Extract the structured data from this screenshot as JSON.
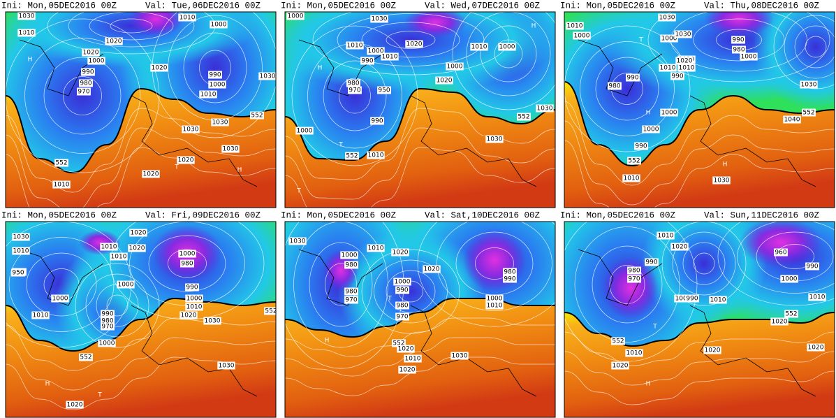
{
  "panels": [
    {
      "ini": "Ini: Mon,05DEC2016 00Z",
      "val": "Val: Tue,06DEC2016 00Z",
      "labels": [
        "1030",
        "1010",
        "1020",
        "1020",
        "1000",
        "990",
        "980",
        "970",
        "1020",
        "1010",
        "1000",
        "990",
        "1000",
        "1010",
        "1030",
        "552",
        "1030",
        "1030",
        "1030",
        "1020",
        "552",
        "1020",
        "1010",
        "H",
        "T",
        "H",
        "T"
      ]
    },
    {
      "ini": "Ini: Mon,05DEC2016 00Z",
      "val": "Val: Wed,07DEC2016 00Z",
      "labels": [
        "1000",
        "1030",
        "1010",
        "1020",
        "1000",
        "990",
        "1010",
        "1010",
        "1000",
        "980",
        "970",
        "950",
        "1000",
        "1020",
        "990",
        "552",
        "1030",
        "1000",
        "552",
        "1010",
        "1030",
        "H",
        "T",
        "T",
        "H"
      ]
    },
    {
      "ini": "Ini: Mon,05DEC2016 00Z",
      "val": "Val: Thu,08DEC2016 00Z",
      "labels": [
        "1010",
        "1000",
        "1030",
        "1000",
        "1030",
        "990",
        "980",
        "1020",
        "1010",
        "990",
        "1000",
        "990",
        "980",
        "1020",
        "1010",
        "1030",
        "552",
        "1040",
        "1000",
        "1000",
        "990",
        "552",
        "1010",
        "1030",
        "H",
        "T",
        "H"
      ]
    },
    {
      "ini": "Ini: Mon,05DEC2016 00Z",
      "val": "Val: Fri,09DEC2016 00Z",
      "labels": [
        "1020",
        "1010",
        "1030",
        "1010",
        "1020",
        "1010",
        "990",
        "980",
        "1000",
        "1000",
        "950",
        "1000",
        "990",
        "1000",
        "1010",
        "1020",
        "990",
        "980",
        "970",
        "1010",
        "1000",
        "1030",
        "552",
        "552",
        "1030",
        "1020",
        "H",
        "T"
      ]
    },
    {
      "ini": "Ini: Mon,05DEC2016 00Z",
      "val": "Val: Sat,10DEC2016 00Z",
      "labels": [
        "1030",
        "1010",
        "1000",
        "980",
        "980",
        "970",
        "1020",
        "1020",
        "1000",
        "990",
        "980",
        "970",
        "980",
        "990",
        "1000",
        "1010",
        "552",
        "1020",
        "1010",
        "1020",
        "1030",
        "1020",
        "H",
        "T"
      ]
    },
    {
      "ini": "Ini: Mon,05DEC2016 00Z",
      "val": "Val: Sun,11DEC2016 00Z",
      "labels": [
        "1010",
        "1020",
        "990",
        "980",
        "970",
        "1000",
        "990",
        "960",
        "990",
        "1000",
        "1010",
        "1010",
        "552",
        "1020",
        "552",
        "1010",
        "1020",
        "1020",
        "1020",
        "H",
        "T"
      ]
    }
  ]
}
